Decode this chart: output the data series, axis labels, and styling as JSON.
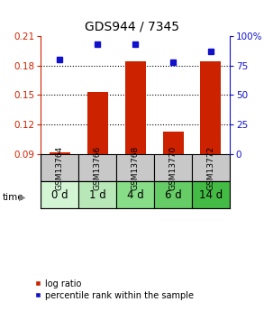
{
  "title": "GDS944 / 7345",
  "samples": [
    "GSM13764",
    "GSM13766",
    "GSM13768",
    "GSM13770",
    "GSM13772"
  ],
  "time_labels": [
    "0 d",
    "1 d",
    "4 d",
    "6 d",
    "14 d"
  ],
  "log_ratio": [
    0.092,
    0.153,
    0.184,
    0.113,
    0.184
  ],
  "percentile": [
    80,
    93,
    93,
    78,
    87
  ],
  "ylim_left": [
    0.09,
    0.21
  ],
  "ylim_right": [
    0,
    100
  ],
  "yticks_left": [
    0.09,
    0.12,
    0.15,
    0.18,
    0.21
  ],
  "yticks_right": [
    0,
    25,
    50,
    75,
    100
  ],
  "bar_color": "#cc2200",
  "marker_color": "#1111cc",
  "bar_width": 0.55,
  "title_fontsize": 10,
  "tick_fontsize": 7.5,
  "gsm_fontsize": 6.5,
  "time_fontsize": 8.5,
  "legend_fontsize": 7,
  "gsm_box_color": "#c8c8c8",
  "time_box_colors": [
    "#d4f5d4",
    "#b8e8b8",
    "#88dd88",
    "#66cc66",
    "#44bb44"
  ],
  "background_color": "#ffffff",
  "dotted_lines": [
    0.12,
    0.15,
    0.18
  ],
  "pct_marker_size": 5
}
